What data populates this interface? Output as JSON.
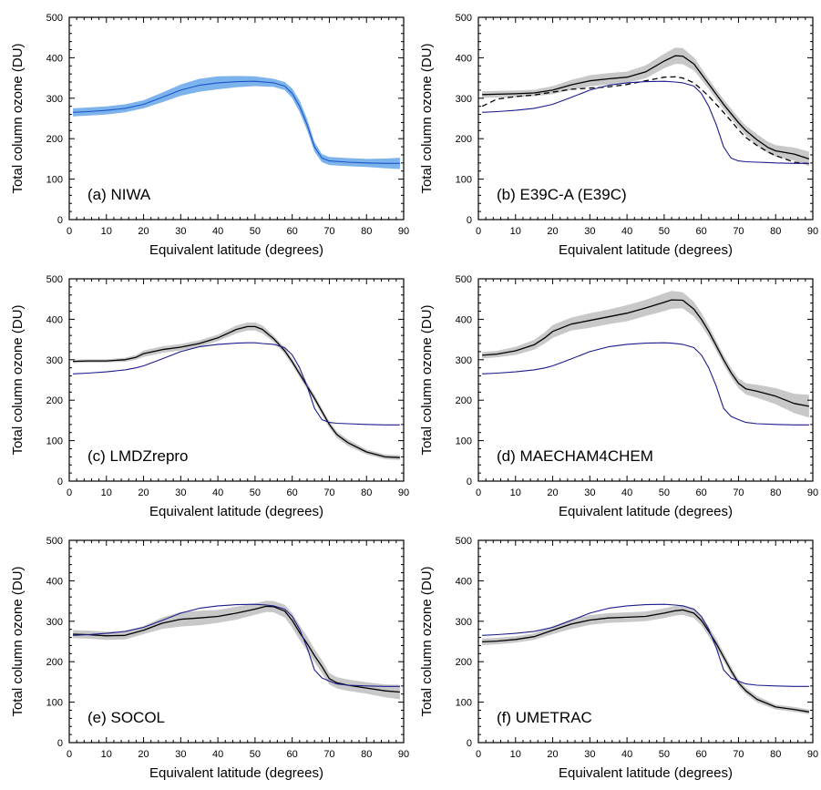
{
  "chart_data": [
    {
      "type": "line",
      "panel_label": "(a) NIWA",
      "xlabel": "Equivalent latitude (degrees)",
      "ylabel": "Total column ozone (DU)",
      "xlim": [
        0,
        90
      ],
      "ylim": [
        0,
        500
      ],
      "xticks": [
        0,
        10,
        20,
        30,
        40,
        50,
        60,
        70,
        80,
        90
      ],
      "yticks": [
        0,
        100,
        200,
        300,
        400,
        500
      ],
      "x": [
        1,
        5,
        10,
        15,
        20,
        25,
        30,
        35,
        40,
        45,
        50,
        55,
        58,
        60,
        62,
        64,
        66,
        68,
        70,
        75,
        80,
        85,
        89
      ],
      "series": [
        {
          "role": "observed",
          "color": "#1a56c7",
          "values": [
            265,
            267,
            270,
            275,
            285,
            302,
            320,
            332,
            338,
            341,
            342,
            338,
            330,
            312,
            280,
            235,
            180,
            152,
            145,
            142,
            140,
            139,
            139
          ],
          "band": [
            10,
            10,
            10,
            10,
            10,
            12,
            14,
            16,
            16,
            14,
            12,
            10,
            10,
            12,
            14,
            14,
            12,
            10,
            10,
            10,
            10,
            12,
            14
          ]
        }
      ]
    },
    {
      "type": "line",
      "panel_label": "(b) E39C-A (E39C)",
      "xlabel": "Equivalent latitude (degrees)",
      "ylabel": "Total column ozone (DU)",
      "xlim": [
        0,
        90
      ],
      "ylim": [
        0,
        500
      ],
      "xticks": [
        0,
        10,
        20,
        30,
        40,
        50,
        60,
        70,
        80,
        90
      ],
      "yticks": [
        0,
        100,
        200,
        300,
        400,
        500
      ],
      "x": [
        1,
        5,
        10,
        15,
        20,
        25,
        30,
        35,
        40,
        45,
        50,
        53,
        55,
        58,
        60,
        62,
        64,
        66,
        68,
        70,
        72,
        75,
        78,
        80,
        85,
        89
      ],
      "series": [
        {
          "role": "model",
          "color": "#000000",
          "values": [
            309,
            310,
            311,
            313,
            320,
            333,
            343,
            348,
            352,
            365,
            392,
            405,
            404,
            385,
            360,
            335,
            310,
            285,
            262,
            240,
            220,
            197,
            178,
            170,
            162,
            150
          ],
          "band": [
            8,
            8,
            8,
            8,
            10,
            12,
            14,
            14,
            14,
            16,
            18,
            20,
            20,
            16,
            14,
            12,
            12,
            12,
            12,
            12,
            12,
            14,
            14,
            14,
            16,
            18
          ]
        },
        {
          "role": "model-alt",
          "color": "#000000",
          "dashed": true,
          "values": [
            280,
            298,
            304,
            308,
            315,
            322,
            325,
            328,
            334,
            343,
            352,
            353,
            350,
            338,
            322,
            305,
            285,
            265,
            244,
            222,
            203,
            183,
            167,
            158,
            142,
            138
          ]
        },
        {
          "role": "observed",
          "color": "#1c1c8c",
          "values": [
            265,
            267,
            270,
            275,
            285,
            302,
            320,
            332,
            338,
            341,
            342,
            340,
            338,
            330,
            312,
            280,
            235,
            180,
            152,
            145,
            143,
            142,
            141,
            140,
            139,
            139
          ]
        }
      ]
    },
    {
      "type": "line",
      "panel_label": "(c) LMDZrepro",
      "xlabel": "Equivalent latitude (degrees)",
      "ylabel": "Total column ozone (DU)",
      "xlim": [
        0,
        90
      ],
      "ylim": [
        0,
        500
      ],
      "xticks": [
        0,
        10,
        20,
        30,
        40,
        50,
        60,
        70,
        80,
        90
      ],
      "yticks": [
        0,
        100,
        200,
        300,
        400,
        500
      ],
      "x": [
        1,
        5,
        10,
        15,
        18,
        20,
        25,
        30,
        35,
        40,
        45,
        48,
        50,
        52,
        55,
        58,
        60,
        62,
        64,
        66,
        68,
        70,
        72,
        75,
        80,
        85,
        89
      ],
      "series": [
        {
          "role": "model",
          "color": "#000000",
          "values": [
            296,
            297,
            297,
            300,
            306,
            315,
            325,
            331,
            340,
            354,
            375,
            382,
            382,
            375,
            352,
            322,
            295,
            265,
            235,
            205,
            172,
            140,
            115,
            95,
            72,
            60,
            58
          ],
          "band": [
            4,
            4,
            4,
            5,
            6,
            8,
            8,
            8,
            8,
            8,
            10,
            10,
            10,
            10,
            8,
            8,
            8,
            8,
            8,
            8,
            8,
            8,
            8,
            8,
            6,
            6,
            6
          ]
        },
        {
          "role": "observed",
          "color": "#1c1c8c",
          "values": [
            265,
            267,
            270,
            275,
            280,
            285,
            302,
            320,
            332,
            338,
            341,
            342,
            342,
            340,
            338,
            330,
            312,
            280,
            235,
            180,
            152,
            145,
            143,
            142,
            140,
            139,
            139
          ]
        }
      ]
    },
    {
      "type": "line",
      "panel_label": "(d) MAECHAM4CHEM",
      "xlabel": "Equivalent latitude (degrees)",
      "ylabel": "Total column ozone (DU)",
      "xlim": [
        0,
        90
      ],
      "ylim": [
        0,
        500
      ],
      "xticks": [
        0,
        10,
        20,
        30,
        40,
        50,
        60,
        70,
        80,
        90
      ],
      "yticks": [
        0,
        100,
        200,
        300,
        400,
        500
      ],
      "x": [
        1,
        5,
        10,
        15,
        18,
        20,
        25,
        30,
        35,
        40,
        45,
        50,
        52,
        55,
        58,
        60,
        62,
        64,
        66,
        68,
        70,
        72,
        75,
        80,
        85,
        89
      ],
      "series": [
        {
          "role": "model",
          "color": "#000000",
          "values": [
            311,
            314,
            322,
            337,
            355,
            370,
            388,
            397,
            406,
            415,
            428,
            442,
            448,
            447,
            425,
            400,
            370,
            335,
            300,
            268,
            242,
            228,
            222,
            210,
            192,
            185
          ],
          "band": [
            8,
            8,
            10,
            12,
            14,
            16,
            16,
            18,
            18,
            20,
            20,
            22,
            22,
            20,
            18,
            16,
            14,
            12,
            12,
            12,
            12,
            14,
            16,
            20,
            24,
            28
          ]
        },
        {
          "role": "observed",
          "color": "#1c1c8c",
          "values": [
            265,
            267,
            270,
            275,
            280,
            285,
            302,
            320,
            332,
            338,
            341,
            342,
            341,
            338,
            330,
            312,
            280,
            235,
            180,
            160,
            152,
            145,
            142,
            140,
            139,
            139
          ]
        }
      ]
    },
    {
      "type": "line",
      "panel_label": "(e) SOCOL",
      "xlabel": "Equivalent latitude (degrees)",
      "ylabel": "Total column ozone (DU)",
      "xlim": [
        0,
        90
      ],
      "ylim": [
        0,
        500
      ],
      "xticks": [
        0,
        10,
        20,
        30,
        40,
        50,
        60,
        70,
        80,
        90
      ],
      "yticks": [
        0,
        100,
        200,
        300,
        400,
        500
      ],
      "x": [
        1,
        5,
        10,
        15,
        20,
        25,
        30,
        35,
        40,
        45,
        50,
        53,
        55,
        58,
        60,
        62,
        64,
        66,
        68,
        70,
        72,
        75,
        80,
        85,
        89
      ],
      "series": [
        {
          "role": "model",
          "color": "#000000",
          "values": [
            268,
            267,
            264,
            265,
            278,
            295,
            305,
            308,
            312,
            320,
            330,
            337,
            336,
            325,
            302,
            272,
            245,
            215,
            188,
            158,
            148,
            142,
            135,
            128,
            125
          ],
          "band": [
            10,
            10,
            10,
            10,
            10,
            14,
            18,
            18,
            16,
            16,
            14,
            14,
            14,
            16,
            18,
            18,
            18,
            16,
            16,
            14,
            14,
            14,
            14,
            16,
            18
          ]
        },
        {
          "role": "observed",
          "color": "#1c1c8c",
          "values": [
            265,
            267,
            270,
            275,
            285,
            302,
            320,
            332,
            338,
            341,
            342,
            340,
            338,
            330,
            312,
            280,
            235,
            180,
            160,
            152,
            145,
            142,
            140,
            139,
            139
          ]
        }
      ]
    },
    {
      "type": "line",
      "panel_label": "(f) UMETRAC",
      "xlabel": "Equivalent latitude (degrees)",
      "ylabel": "Total column ozone (DU)",
      "xlim": [
        0,
        90
      ],
      "ylim": [
        0,
        500
      ],
      "xticks": [
        0,
        10,
        20,
        30,
        40,
        50,
        60,
        70,
        80,
        90
      ],
      "yticks": [
        0,
        100,
        200,
        300,
        400,
        500
      ],
      "x": [
        1,
        5,
        10,
        15,
        20,
        25,
        30,
        35,
        40,
        45,
        50,
        53,
        55,
        58,
        60,
        62,
        64,
        66,
        68,
        70,
        72,
        75,
        80,
        85,
        89
      ],
      "series": [
        {
          "role": "model",
          "color": "#000000",
          "values": [
            249,
            251,
            255,
            262,
            278,
            293,
            303,
            308,
            310,
            312,
            320,
            326,
            328,
            320,
            302,
            275,
            245,
            212,
            178,
            148,
            128,
            107,
            88,
            82,
            76
          ],
          "band": [
            8,
            8,
            8,
            8,
            10,
            12,
            12,
            12,
            12,
            12,
            12,
            12,
            12,
            12,
            12,
            12,
            12,
            10,
            10,
            8,
            8,
            8,
            6,
            6,
            6
          ]
        },
        {
          "role": "observed",
          "color": "#1c1c8c",
          "values": [
            265,
            267,
            270,
            275,
            285,
            302,
            320,
            332,
            338,
            341,
            342,
            340,
            338,
            330,
            312,
            280,
            235,
            180,
            160,
            152,
            145,
            142,
            140,
            139,
            139
          ]
        }
      ]
    }
  ]
}
